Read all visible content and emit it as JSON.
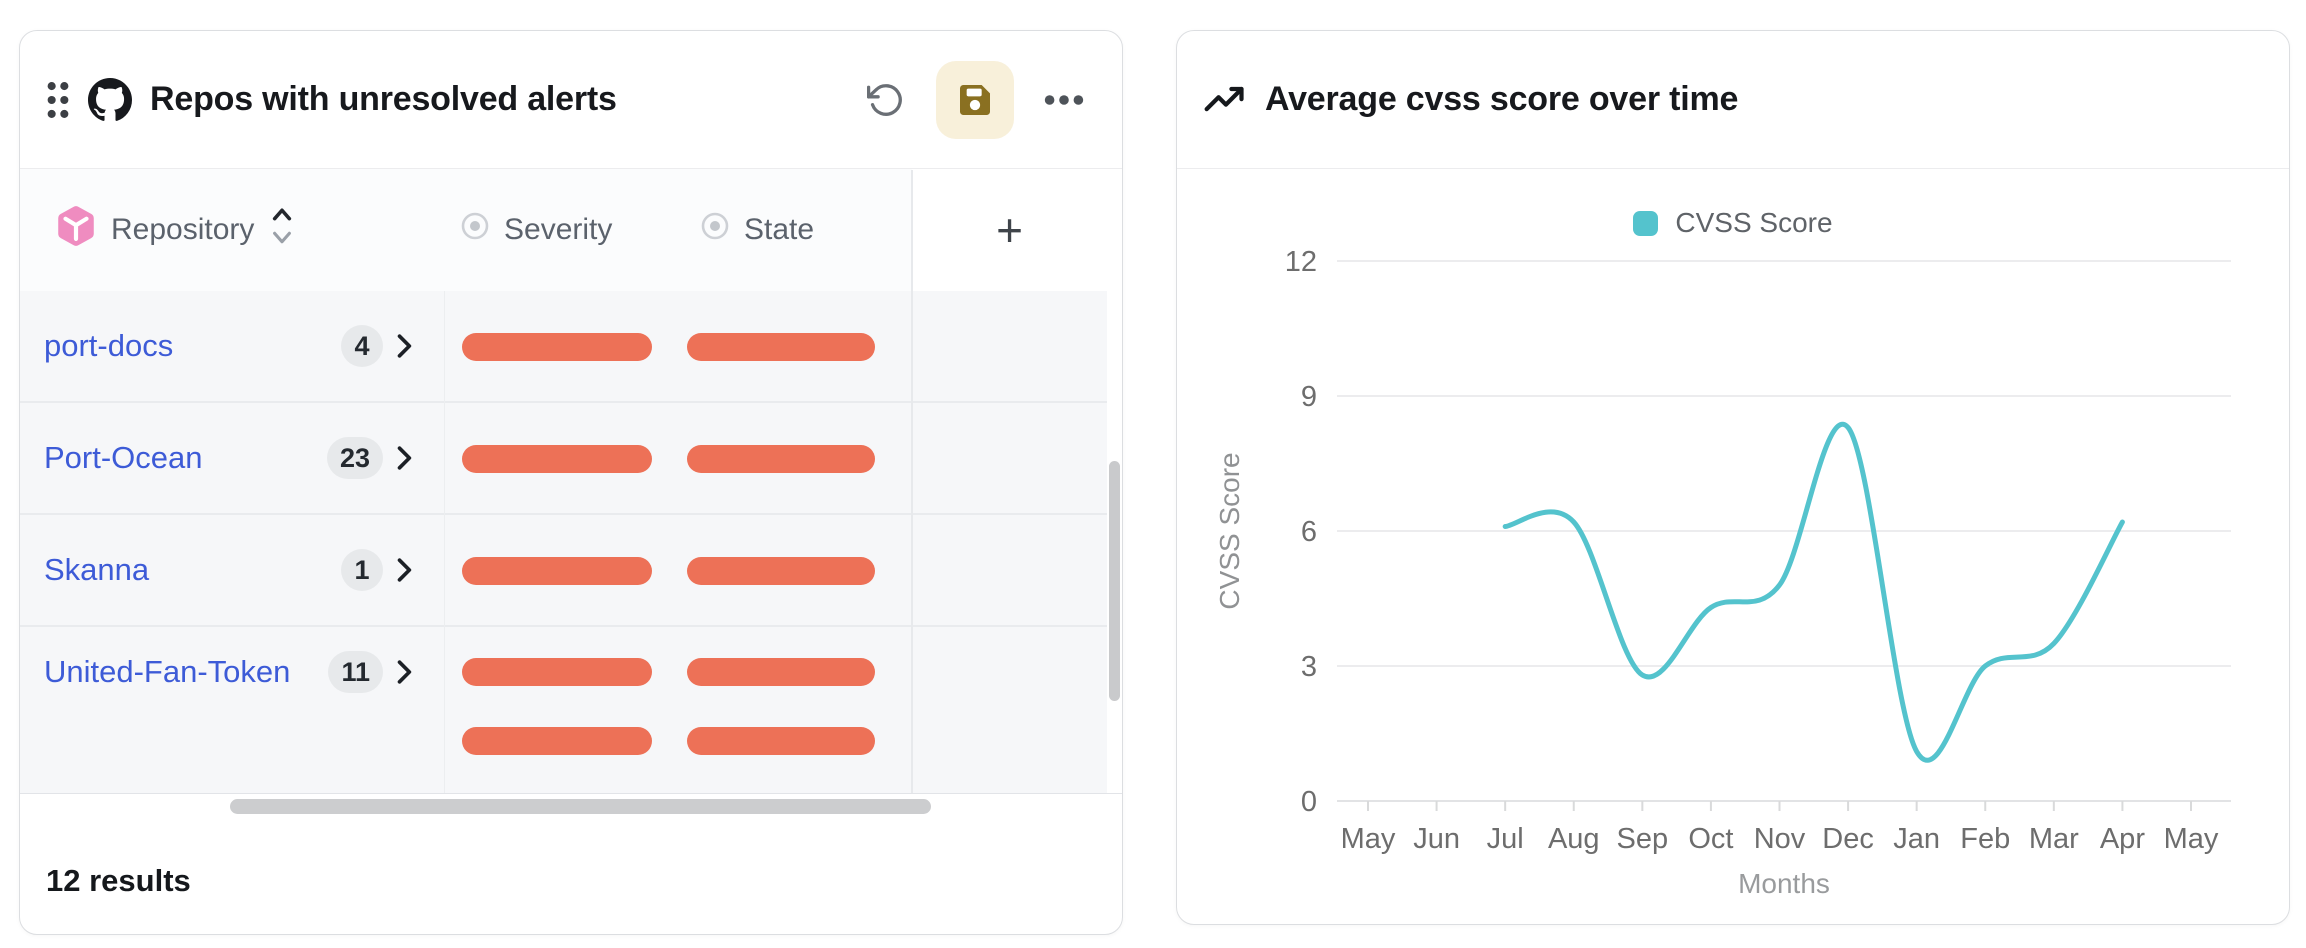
{
  "left_panel": {
    "title": "Repos with unresolved alerts",
    "columns": [
      {
        "label": "Repository"
      },
      {
        "label": "Severity"
      },
      {
        "label": "State"
      },
      {
        "label": "+"
      }
    ],
    "rows": [
      {
        "repo": "port-docs",
        "count": "4"
      },
      {
        "repo": "Port-Ocean",
        "count": "23"
      },
      {
        "repo": "Skanna",
        "count": "1"
      },
      {
        "repo": "United-Fan-Token",
        "count": "11"
      }
    ],
    "results_text": "12 results"
  },
  "right_panel": {
    "title": "Average cvss score over time"
  },
  "chart_data": {
    "type": "line",
    "title": "Average cvss score over time",
    "xlabel": "Months",
    "ylabel": "CVSS Score",
    "x_categories": [
      "May",
      "Jun",
      "Jul",
      "Aug",
      "Sep",
      "Oct",
      "Nov",
      "Dec",
      "Jan",
      "Feb",
      "Mar",
      "Apr",
      "May"
    ],
    "yticks": [
      0,
      3,
      6,
      9,
      12
    ],
    "ylim": [
      0,
      12
    ],
    "grid": true,
    "legend_position": "top",
    "series": [
      {
        "name": "CVSS Score",
        "color": "#54c3cd",
        "points": [
          {
            "x": "Jul",
            "y": 6.1
          },
          {
            "x": "Aug",
            "y": 6.2
          },
          {
            "x": "Sep",
            "y": 2.8
          },
          {
            "x": "Oct",
            "y": 4.3
          },
          {
            "x": "Nov",
            "y": 4.8
          },
          {
            "x": "Dec",
            "y": 8.3
          },
          {
            "x": "Jan",
            "y": 1.1
          },
          {
            "x": "Feb",
            "y": 3.0
          },
          {
            "x": "Mar",
            "y": 3.5
          },
          {
            "x": "Apr",
            "y": 6.2
          }
        ]
      }
    ]
  },
  "colors": {
    "bar_orange": "#ed7157",
    "link_blue": "#3d5bd7",
    "accent_teal": "#54c3cd",
    "save_button_bg": "#f8f0da",
    "save_icon": "#8a7021",
    "cube_pink": "#ef8cc0",
    "badge_bg": "#e7e9eb"
  }
}
